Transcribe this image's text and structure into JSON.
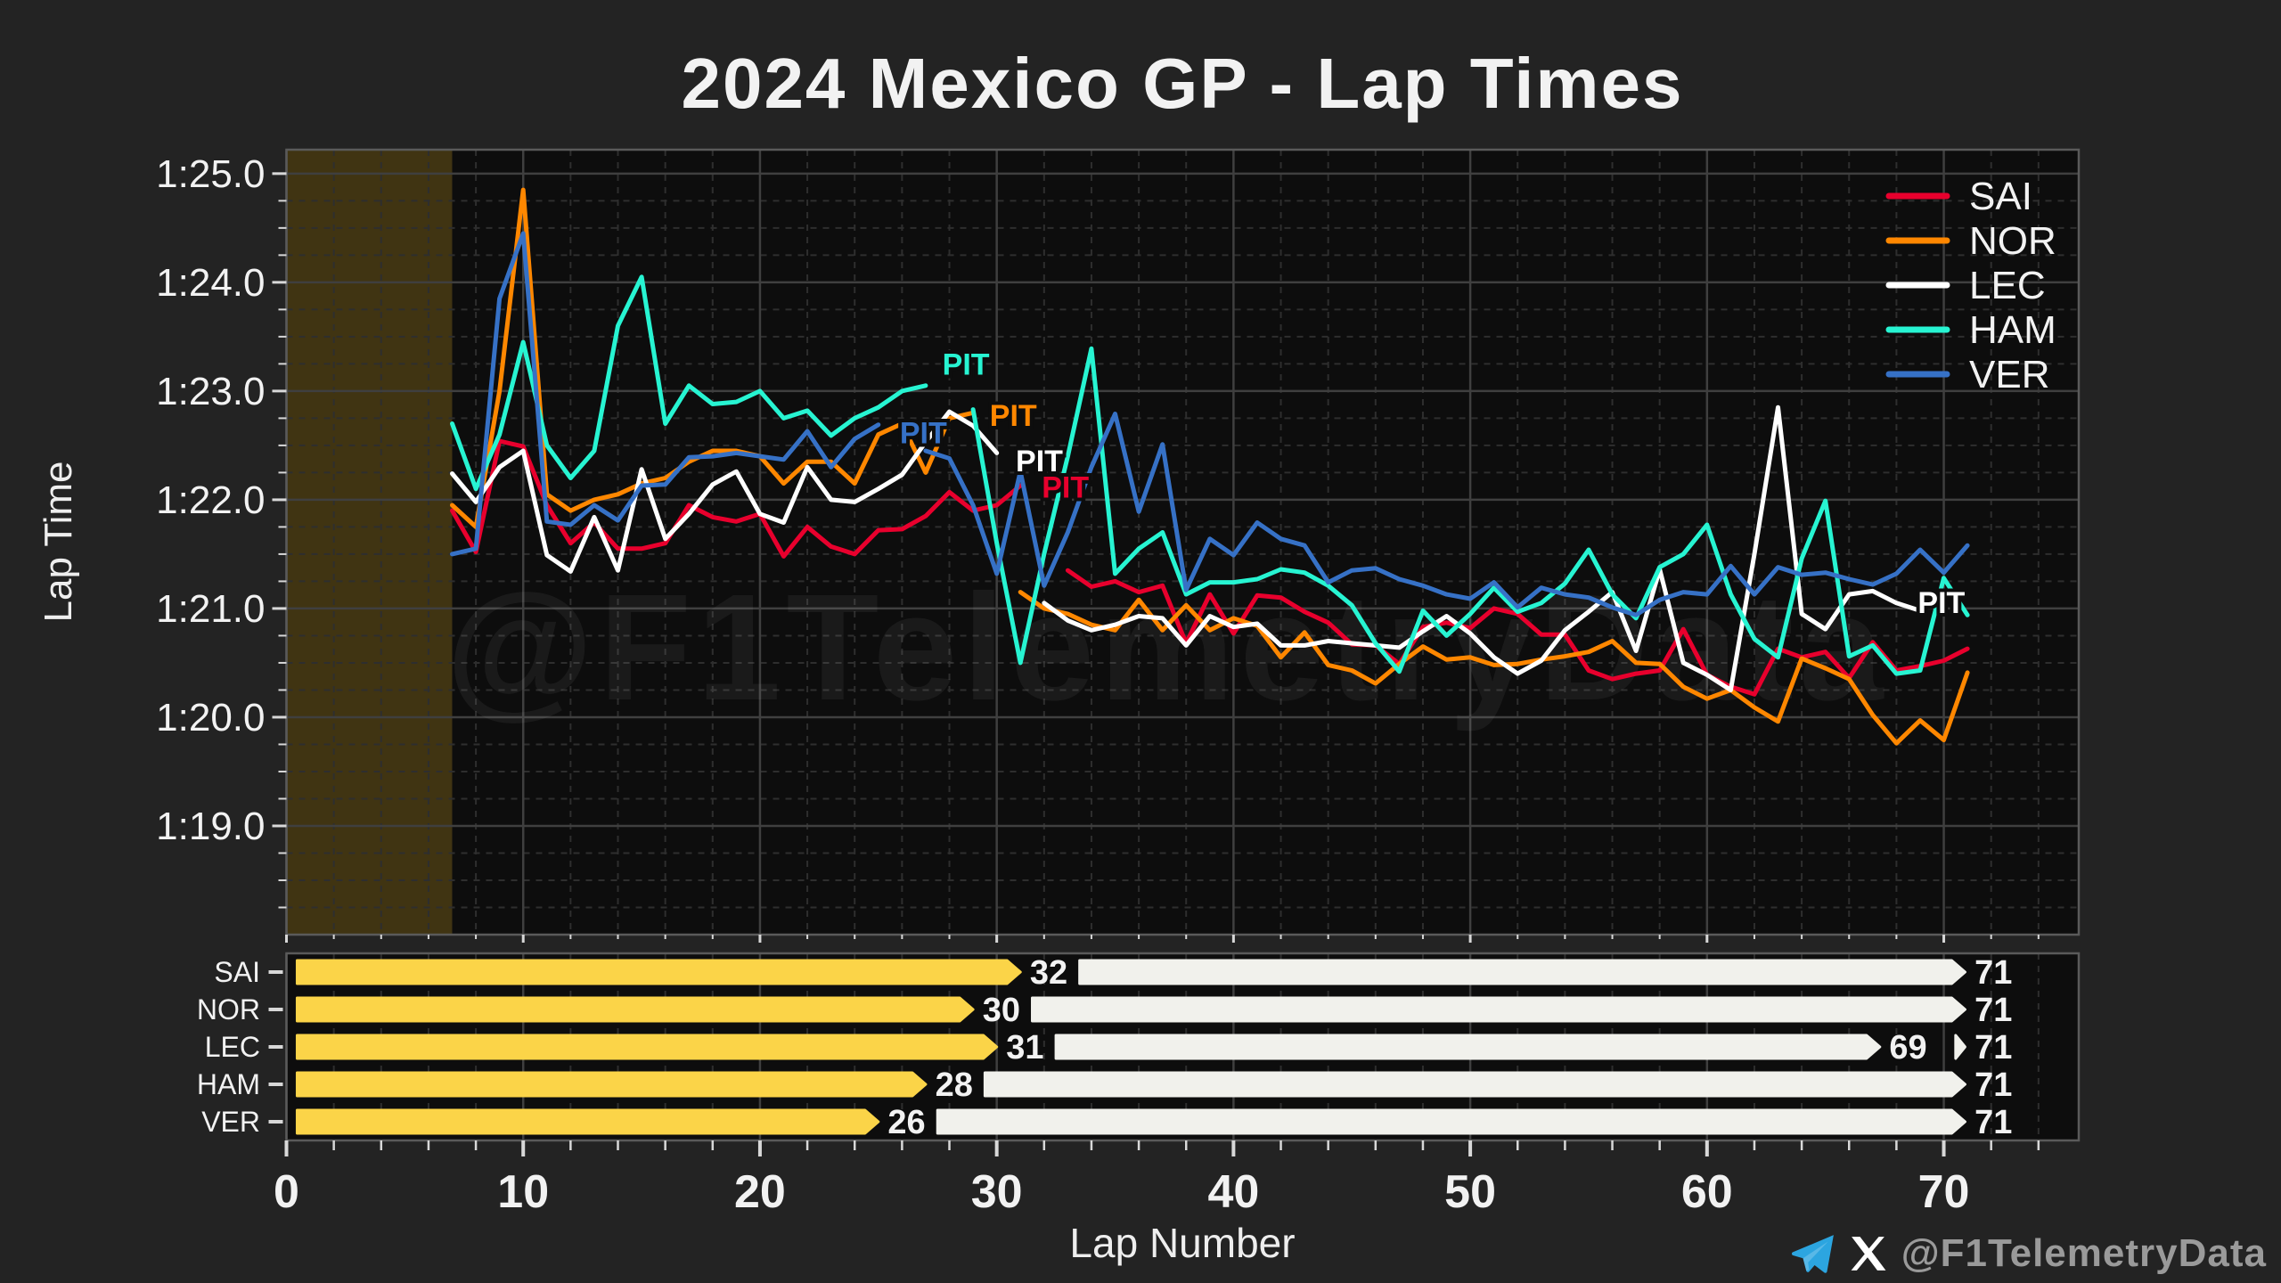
{
  "title": "2024 Mexico GP - Lap Times",
  "watermark": "@F1TelemetryData",
  "footer": {
    "handle": "@F1TelemetryData"
  },
  "colors": {
    "figure_bg": "#232323",
    "plot_bg": "#0d0d0d",
    "spine": "#5a5a5a",
    "grid_major": "#3f3f3f",
    "grid_minor": "#2e2e2e",
    "tick": "#d8d8d8",
    "tick_label": "#f2f2f2",
    "shaded_span": "rgba(214,168,35,0.26)",
    "medium_tyre": "#fbd448",
    "hard_tyre": "#f1f1ec",
    "telegram": "#2CA5E0",
    "x_logo": "#ffffff"
  },
  "chart_data": {
    "type": "line",
    "title": "2024 Mexico GP - Lap Times",
    "xlabel": "Lap Number",
    "ylabel": "Lap Time",
    "xlim": [
      0,
      75.7
    ],
    "ylim": [
      78.0,
      85.22
    ],
    "grid": true,
    "legend_position": "upper right",
    "xticks_major": [
      0,
      10,
      20,
      30,
      40,
      50,
      60,
      70
    ],
    "xtick_minor_step": 2,
    "yticks_major": [
      {
        "value": 79,
        "label": "1:19.0"
      },
      {
        "value": 80,
        "label": "1:20.0"
      },
      {
        "value": 81,
        "label": "1:21.0"
      },
      {
        "value": 82,
        "label": "1:22.0"
      },
      {
        "value": 83,
        "label": "1:23.0"
      },
      {
        "value": 84,
        "label": "1:24.0"
      },
      {
        "value": 85,
        "label": "1:25.0"
      }
    ],
    "ytick_minor_step": 0.25,
    "shaded_span": {
      "x0": 0,
      "x1": 7
    },
    "series": [
      {
        "name": "SAI",
        "color": "#e8002d",
        "pit_laps": [
          32
        ],
        "segments": [
          {
            "start_lap": 7,
            "times": [
              81.9,
              81.52,
              82.54,
              82.49,
              81.95,
              81.6,
              81.79,
              81.55,
              81.55,
              81.6,
              81.95,
              81.84,
              81.8,
              81.87,
              81.48,
              81.75,
              81.57,
              81.5,
              81.72,
              81.73,
              81.85,
              82.07,
              81.9,
              81.95,
              82.13
            ]
          },
          {
            "start_lap": 33,
            "times": [
              81.35,
              81.2,
              81.25,
              81.15,
              81.21,
              80.68,
              81.13,
              80.77,
              81.12,
              81.1,
              80.97,
              80.87,
              80.67,
              80.66,
              80.49,
              80.83,
              80.87,
              80.82,
              81.0,
              80.95,
              80.76,
              80.76,
              80.43,
              80.35,
              80.4,
              80.43,
              80.81,
              80.39,
              80.28,
              80.21,
              80.63,
              80.55,
              80.6,
              80.36,
              80.69,
              80.43,
              80.47,
              80.52,
              80.63
            ]
          }
        ]
      },
      {
        "name": "NOR",
        "color": "#ff8700",
        "pit_laps": [
          30
        ],
        "segments": [
          {
            "start_lap": 7,
            "times": [
              81.95,
              81.75,
              83.0,
              84.85,
              82.05,
              81.9,
              82.0,
              82.05,
              82.15,
              82.2,
              82.35,
              82.45,
              82.45,
              82.4,
              82.15,
              82.35,
              82.35,
              82.15,
              82.6,
              82.7,
              82.25,
              82.75,
              82.8
            ]
          },
          {
            "start_lap": 31,
            "times": [
              81.15,
              81.0,
              80.95,
              80.85,
              80.8,
              81.08,
              80.8,
              81.03,
              80.8,
              80.91,
              80.84,
              80.55,
              80.78,
              80.48,
              80.43,
              80.31,
              80.49,
              80.65,
              80.53,
              80.55,
              80.48,
              80.49,
              80.53,
              80.56,
              80.6,
              80.7,
              80.5,
              80.49,
              80.28,
              80.17,
              80.25,
              80.09,
              79.96,
              80.54,
              80.45,
              80.35,
              80.02,
              79.76,
              79.97,
              79.79,
              80.41
            ]
          }
        ]
      },
      {
        "name": "LEC",
        "color": "#ffffff",
        "pit_laps": [
          31,
          69
        ],
        "segments": [
          {
            "start_lap": 7,
            "times": [
              82.24,
              81.98,
              82.3,
              82.45,
              81.49,
              81.34,
              81.84,
              81.35,
              82.28,
              81.64,
              81.87,
              82.14,
              82.26,
              81.87,
              81.79,
              82.3,
              82.0,
              81.98,
              82.1,
              82.23,
              82.53,
              82.81,
              82.68,
              82.43
            ]
          },
          {
            "start_lap": 32,
            "times": [
              81.05,
              80.89,
              80.8,
              80.85,
              80.93,
              80.91,
              80.66,
              80.93,
              80.83,
              80.86,
              80.66,
              80.66,
              80.7,
              80.68,
              80.66,
              80.64,
              80.79,
              80.93,
              80.77,
              80.55,
              80.4,
              80.52,
              80.8,
              80.97,
              81.15,
              80.61,
              81.36,
              80.5,
              80.39,
              80.25,
              81.5,
              82.85,
              80.95,
              80.81,
              81.13,
              81.16,
              81.05,
              80.98
            ]
          }
        ]
      },
      {
        "name": "HAM",
        "color": "#27f4d2",
        "pit_laps": [
          28
        ],
        "segments": [
          {
            "start_lap": 7,
            "times": [
              82.7,
              82.1,
              82.6,
              83.45,
              82.5,
              82.2,
              82.45,
              83.6,
              84.05,
              82.7,
              83.05,
              82.88,
              82.9,
              83.0,
              82.75,
              82.82,
              82.59,
              82.75,
              82.85,
              83.0,
              83.05
            ]
          },
          {
            "start_lap": 29,
            "times": [
              82.83,
              81.6,
              80.5,
              81.5,
              82.4,
              83.39,
              81.32,
              81.55,
              81.7,
              81.13,
              81.24,
              81.24,
              81.27,
              81.36,
              81.33,
              81.21,
              81.03,
              80.68,
              80.42,
              80.98,
              80.75,
              80.95,
              81.19,
              80.97,
              81.05,
              81.23,
              81.54,
              81.13,
              80.91,
              81.38,
              81.5,
              81.77,
              81.13,
              80.72,
              80.55,
              81.46,
              81.99,
              80.56,
              80.66,
              80.4,
              80.43,
              81.28,
              80.94
            ]
          }
        ]
      },
      {
        "name": "VER",
        "color": "#3671c6",
        "pit_laps": [
          26
        ],
        "segments": [
          {
            "start_lap": 7,
            "times": [
              81.5,
              81.55,
              83.85,
              84.45,
              81.8,
              81.77,
              81.95,
              81.81,
              82.13,
              82.14,
              82.39,
              82.4,
              82.43,
              82.4,
              82.37,
              82.63,
              82.3,
              82.56,
              82.69
            ]
          },
          {
            "start_lap": 27,
            "times": [
              82.45,
              82.38,
              81.95,
              81.32,
              82.26,
              81.21,
              81.7,
              82.3,
              82.79,
              81.89,
              82.51,
              81.17,
              81.64,
              81.49,
              81.79,
              81.64,
              81.58,
              81.24,
              81.35,
              81.37,
              81.27,
              81.21,
              81.13,
              81.09,
              81.24,
              81.01,
              81.19,
              81.13,
              81.1,
              81.01,
              80.94,
              81.08,
              81.15,
              81.13,
              81.39,
              81.13,
              81.38,
              81.31,
              81.33,
              81.27,
              81.22,
              81.32,
              81.54,
              81.33,
              81.58
            ]
          }
        ]
      }
    ],
    "pit_annotations": [
      {
        "text": "PIT",
        "series": "VER",
        "lap": 26.9,
        "time": 82.52
      },
      {
        "text": "PIT",
        "series": "HAM",
        "lap": 28.7,
        "time": 83.15
      },
      {
        "text": "PIT",
        "series": "NOR",
        "lap": 30.7,
        "time": 82.68
      },
      {
        "text": "PIT",
        "series": "LEC",
        "lap": 31.8,
        "time": 82.26
      },
      {
        "text": "PIT",
        "series": "SAI",
        "lap": 32.9,
        "time": 82.02
      },
      {
        "text": "PIT",
        "series": "LEC",
        "lap": 69.9,
        "time": 80.96
      }
    ]
  },
  "stint_chart": {
    "rows": [
      {
        "driver": "SAI",
        "stints": [
          {
            "compound": "medium",
            "start": 0.45,
            "end": 31.0,
            "label": "32",
            "label_lap": 31.4
          },
          {
            "compound": "hard",
            "start": 33.5,
            "end": 70.9,
            "label": "71",
            "label_lap": 71.3
          }
        ]
      },
      {
        "driver": "NOR",
        "stints": [
          {
            "compound": "medium",
            "start": 0.45,
            "end": 29.0,
            "label": "30",
            "label_lap": 29.4
          },
          {
            "compound": "hard",
            "start": 31.5,
            "end": 70.9,
            "label": "71",
            "label_lap": 71.3
          }
        ]
      },
      {
        "driver": "LEC",
        "stints": [
          {
            "compound": "medium",
            "start": 0.45,
            "end": 30.0,
            "label": "31",
            "label_lap": 30.4
          },
          {
            "compound": "hard",
            "start": 32.5,
            "end": 67.3,
            "label": "69",
            "label_lap": 67.7
          },
          {
            "compound": "hard",
            "start": 70.5,
            "end": 70.9,
            "label": "71",
            "label_lap": 71.3
          }
        ]
      },
      {
        "driver": "HAM",
        "stints": [
          {
            "compound": "medium",
            "start": 0.45,
            "end": 27.0,
            "label": "28",
            "label_lap": 27.4
          },
          {
            "compound": "hard",
            "start": 29.5,
            "end": 70.9,
            "label": "71",
            "label_lap": 71.3
          }
        ]
      },
      {
        "driver": "VER",
        "stints": [
          {
            "compound": "medium",
            "start": 0.45,
            "end": 25.0,
            "label": "26",
            "label_lap": 25.4
          },
          {
            "compound": "hard",
            "start": 27.5,
            "end": 70.9,
            "label": "71",
            "label_lap": 71.3
          }
        ]
      }
    ]
  }
}
